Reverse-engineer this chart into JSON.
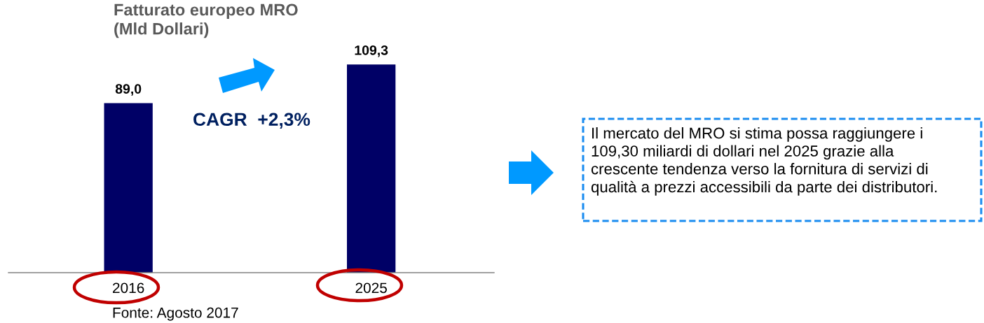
{
  "chart_data": {
    "type": "bar",
    "title": "Fatturato europeo MRO\n(Mld Dollari)",
    "categories": [
      "2016",
      "2025"
    ],
    "values": [
      89.0,
      109.3
    ],
    "value_labels": [
      "89,0",
      "109,3"
    ],
    "color": "#000066",
    "tick_labels": "x",
    "annotations": [
      "CAGR  +2,3%",
      "Il mercato del MRO si stima possa raggiungere i\n109,30 miliardi di dollari nel 2025 grazie alla\ncrescente tendenza verso la fornitura di servizi di\nqualità a prezzi accessibili da parte dei distributori.",
      "Fonte: Agosto 2017"
    ]
  }
}
